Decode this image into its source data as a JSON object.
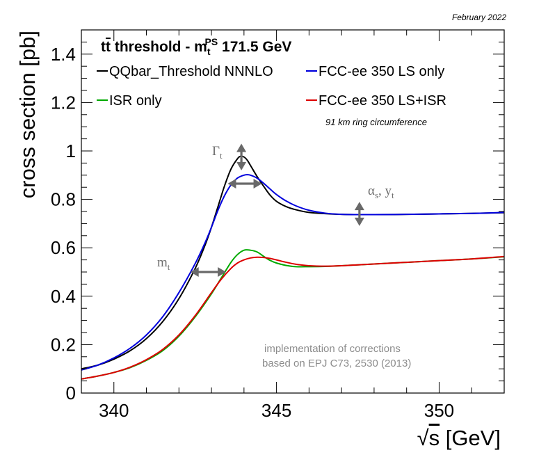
{
  "chart_data": {
    "type": "line",
    "date_label": "February 2022",
    "title": {
      "prefix": "t",
      "tbar": "t",
      "middle": " threshold - m",
      "sub": "t",
      "sup": "PS",
      "suffix": " 171.5 GeV"
    },
    "ylabel": "cross section [pb]",
    "xlabel": {
      "root": "√",
      "var": "s",
      "unit": " [GeV]"
    },
    "xlim": [
      339,
      352
    ],
    "ylim": [
      0,
      1.5
    ],
    "x_ticks": [
      340,
      345,
      350
    ],
    "y_ticks": [
      0,
      0.2,
      0.4,
      0.6,
      0.8,
      1,
      1.2,
      1.4
    ],
    "legend": {
      "placement": "top",
      "subnote": "91 km ring circumference"
    },
    "series": [
      {
        "name": "QQbar_Threshold NNNLO",
        "color": "#000000",
        "x": [
          339.0,
          339.5,
          340.0,
          340.5,
          341.0,
          341.5,
          342.0,
          342.5,
          342.8,
          343.0,
          343.2,
          343.4,
          343.6,
          343.8,
          343.9,
          344.0,
          344.1,
          344.2,
          344.4,
          344.6,
          344.8,
          345.0,
          345.3,
          345.6,
          346.0,
          346.5,
          347.0,
          347.5,
          348.0,
          349.0,
          350.0,
          351.0,
          352.0
        ],
        "values": [
          0.1,
          0.115,
          0.14,
          0.175,
          0.225,
          0.295,
          0.39,
          0.515,
          0.61,
          0.685,
          0.77,
          0.855,
          0.925,
          0.968,
          0.978,
          0.975,
          0.962,
          0.94,
          0.895,
          0.855,
          0.818,
          0.792,
          0.77,
          0.757,
          0.746,
          0.741,
          0.738,
          0.737,
          0.737,
          0.738,
          0.74,
          0.742,
          0.745
        ]
      },
      {
        "name": "FCC-ee 350 LS only",
        "color": "#0000dd",
        "x": [
          339.0,
          339.5,
          340.0,
          340.5,
          341.0,
          341.5,
          342.0,
          342.5,
          342.8,
          343.0,
          343.2,
          343.4,
          343.6,
          343.8,
          344.0,
          344.1,
          344.2,
          344.4,
          344.6,
          344.8,
          345.0,
          345.3,
          345.6,
          346.0,
          346.5,
          347.0,
          347.5,
          348.0,
          349.0,
          350.0,
          351.0,
          352.0
        ],
        "values": [
          0.095,
          0.115,
          0.145,
          0.185,
          0.24,
          0.315,
          0.415,
          0.535,
          0.62,
          0.685,
          0.755,
          0.815,
          0.86,
          0.888,
          0.9,
          0.902,
          0.9,
          0.888,
          0.867,
          0.843,
          0.82,
          0.793,
          0.773,
          0.755,
          0.743,
          0.738,
          0.737,
          0.737,
          0.738,
          0.74,
          0.742,
          0.746
        ]
      },
      {
        "name": "ISR only",
        "color": "#00aa00",
        "x": [
          339.0,
          339.5,
          340.0,
          340.5,
          341.0,
          341.5,
          342.0,
          342.5,
          343.0,
          343.3,
          343.6,
          343.8,
          344.0,
          344.2,
          344.4,
          344.6,
          344.8,
          345.0,
          345.3,
          345.6,
          346.0,
          346.5,
          347.0,
          348.0,
          349.0,
          350.0,
          351.0,
          352.0
        ],
        "values": [
          0.058,
          0.07,
          0.085,
          0.105,
          0.135,
          0.175,
          0.235,
          0.315,
          0.41,
          0.475,
          0.54,
          0.572,
          0.59,
          0.59,
          0.583,
          0.565,
          0.548,
          0.537,
          0.527,
          0.522,
          0.522,
          0.523,
          0.526,
          0.533,
          0.54,
          0.547,
          0.554,
          0.563
        ]
      },
      {
        "name": "FCC-ee 350 LS+ISR",
        "color": "#dd0000",
        "x": [
          339.0,
          339.5,
          340.0,
          340.5,
          341.0,
          341.5,
          342.0,
          342.5,
          343.0,
          343.3,
          343.6,
          343.8,
          344.0,
          344.2,
          344.4,
          344.6,
          344.8,
          345.0,
          345.3,
          345.6,
          346.0,
          346.5,
          347.0,
          348.0,
          349.0,
          350.0,
          351.0,
          352.0
        ],
        "values": [
          0.058,
          0.07,
          0.085,
          0.107,
          0.138,
          0.18,
          0.24,
          0.32,
          0.415,
          0.47,
          0.515,
          0.537,
          0.55,
          0.558,
          0.561,
          0.56,
          0.556,
          0.55,
          0.54,
          0.532,
          0.526,
          0.524,
          0.526,
          0.533,
          0.54,
          0.547,
          0.554,
          0.564
        ]
      }
    ],
    "annotations": {
      "gamma": {
        "base": "Γ",
        "sub": "t",
        "arrow_x": 343.92,
        "arrow_y": [
          0.92,
          1.03
        ],
        "harrow_x": [
          343.5,
          344.55
        ],
        "harrow_y": 0.865
      },
      "mass": {
        "base": "m",
        "sub": "t",
        "arrow_x": [
          342.35,
          343.45
        ],
        "arrow_y": 0.5
      },
      "alpha": {
        "base": "α",
        "sub1": "s",
        "mid": ", y",
        "sub2": "t",
        "arrow_x": 347.55,
        "arrow_y": [
          0.69,
          0.79
        ]
      },
      "note_lines": [
        "implementation of corrections",
        "based on EPJ C73, 2530 (2013)"
      ]
    }
  }
}
